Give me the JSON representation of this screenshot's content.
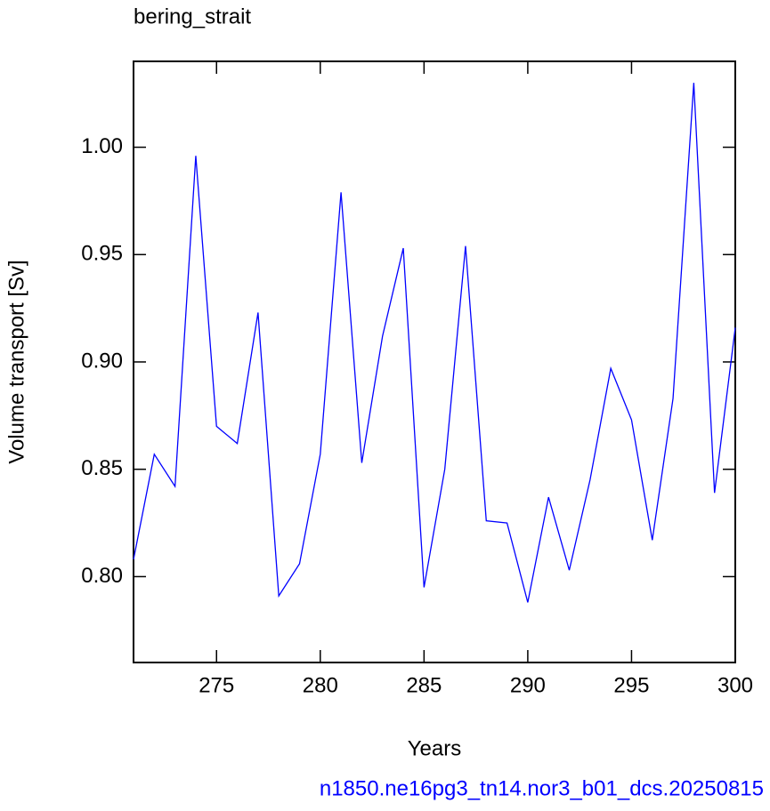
{
  "chart_data": {
    "type": "line",
    "title": "bering_strait",
    "xlabel": "Years",
    "ylabel": "Volume transport [Sv]",
    "footer": "n1850.ne16pg3_tn14.nor3_b01_dcs.20250815",
    "x": [
      271,
      272,
      273,
      274,
      275,
      276,
      277,
      278,
      279,
      280,
      281,
      282,
      283,
      284,
      285,
      286,
      287,
      288,
      289,
      290,
      291,
      292,
      293,
      294,
      295,
      296,
      297,
      298,
      299,
      300
    ],
    "series": [
      {
        "name": "bering_strait",
        "color": "#0000ff",
        "values": [
          0.808,
          0.857,
          0.842,
          0.996,
          0.87,
          0.862,
          0.923,
          0.791,
          0.806,
          0.857,
          0.979,
          0.853,
          0.912,
          0.953,
          0.795,
          0.85,
          0.954,
          0.826,
          0.825,
          0.788,
          0.837,
          0.803,
          0.845,
          0.897,
          0.873,
          0.817,
          0.883,
          1.03,
          0.839,
          0.916
        ]
      }
    ],
    "xlim": [
      271,
      300
    ],
    "xticks": [
      275,
      280,
      285,
      290,
      295,
      300
    ],
    "ylim": [
      0.76,
      1.04
    ],
    "yticks": [
      {
        "value": 0.8,
        "label": "0.80"
      },
      0.85,
      {
        "value": 0.9,
        "label": "0.90"
      },
      0.95,
      {
        "value": 1.0,
        "label": "1.00"
      }
    ],
    "grid": false
  }
}
